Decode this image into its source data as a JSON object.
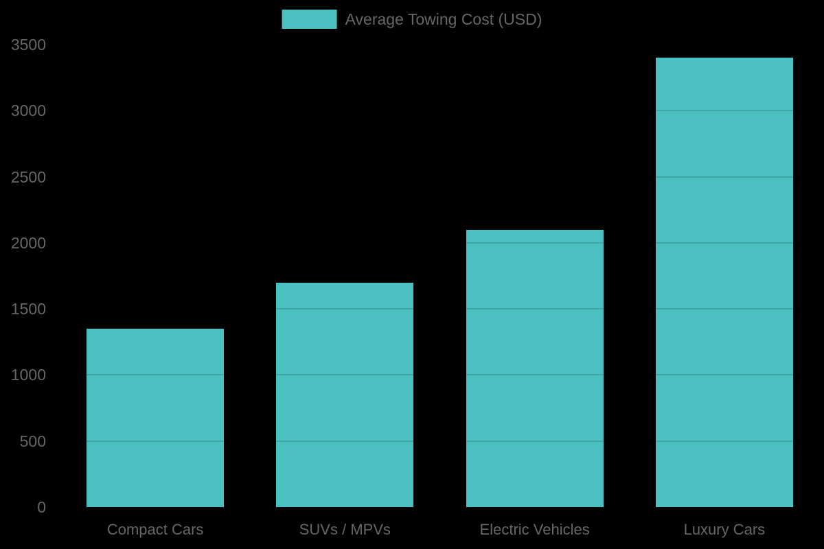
{
  "chart_data": {
    "type": "bar",
    "title": "",
    "legend": {
      "label": "Average Towing Cost (USD)",
      "position": "top"
    },
    "categories": [
      "Compact Cars",
      "SUVs / MPVs",
      "Electric Vehicles",
      "Luxury Cars"
    ],
    "series": [
      {
        "name": "Average Towing Cost (USD)",
        "values": [
          1350,
          1700,
          2100,
          3400
        ]
      }
    ],
    "xlabel": "",
    "ylabel": "",
    "ylim": [
      0,
      3500
    ],
    "ytick_step": 500,
    "yticks": [
      0,
      500,
      1000,
      1500,
      2000,
      2500,
      3000,
      3500
    ],
    "grid": true,
    "colors": {
      "bar": "#4bc0c0",
      "text": "#666666",
      "background": "#000000",
      "gridline_over_bar": "rgba(0,0,0,0.14)"
    }
  }
}
